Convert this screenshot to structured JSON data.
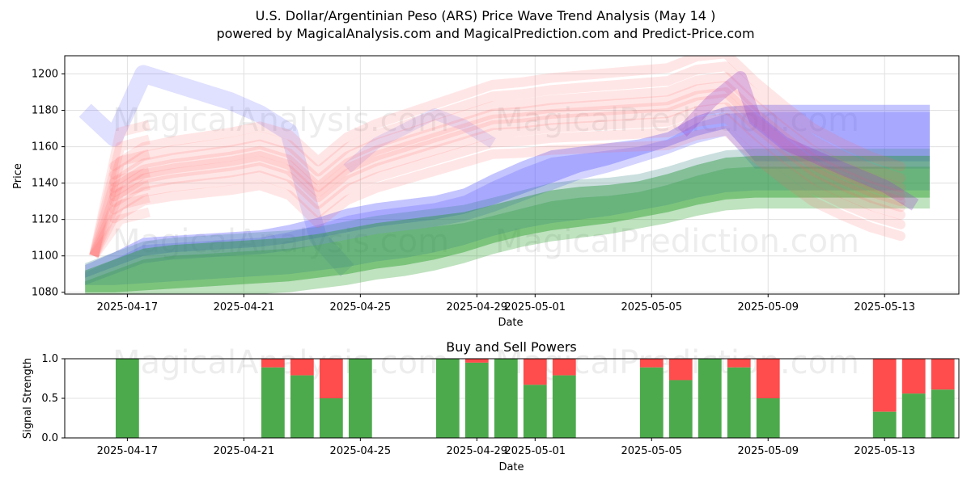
{
  "chart_data": [
    {
      "type": "area",
      "title_line1": "U.S. Dollar/Argentinian Peso (ARS) Price Wave Trend Analysis (May 14 )",
      "title_line2": "powered by MagicalAnalysis.com and MagicalPrediction.com and Predict-Price.com",
      "xlabel": "Date",
      "ylabel": "Price",
      "x_range": [
        -0.7,
        30.0
      ],
      "ylim": [
        1079,
        1210
      ],
      "x_ticks": [
        {
          "pos": 1.45,
          "label": "2025-04-17"
        },
        {
          "pos": 5.45,
          "label": "2025-04-21"
        },
        {
          "pos": 9.45,
          "label": "2025-04-25"
        },
        {
          "pos": 13.45,
          "label": "2025-04-29"
        },
        {
          "pos": 15.45,
          "label": "2025-05-01"
        },
        {
          "pos": 19.45,
          "label": "2025-05-05"
        },
        {
          "pos": 23.45,
          "label": "2025-05-09"
        },
        {
          "pos": 27.45,
          "label": "2025-05-13"
        }
      ],
      "y_ticks": [
        1080,
        1100,
        1120,
        1140,
        1160,
        1180,
        1200
      ],
      "grid": true,
      "watermarks": [
        "MagicalAnalysis.com",
        "MagicalPrediction.com"
      ],
      "colors": {
        "blue": "#5555ff",
        "green": "#2ca02c",
        "teal": "#2f7f7f",
        "red": "#ff6666",
        "purple": "#9944cc"
      },
      "series": [
        {
          "name": "blue band",
          "x": [
            0,
            1,
            2,
            3,
            4,
            5,
            6,
            7,
            8,
            9,
            10,
            11,
            12,
            13,
            14,
            15,
            16,
            17,
            18,
            19,
            20,
            21,
            22,
            23,
            24,
            25,
            26,
            27,
            28,
            29
          ],
          "upper": [
            1095,
            1102,
            1110,
            1111,
            1112,
            1113,
            1114,
            1117,
            1121,
            1126,
            1129,
            1131,
            1133,
            1137,
            1145,
            1152,
            1158,
            1160,
            1162,
            1164,
            1168,
            1177,
            1182,
            1183,
            1183,
            1183,
            1183,
            1183,
            1183,
            1183
          ],
          "lower": [
            1088,
            1094,
            1100,
            1102,
            1103,
            1104,
            1105,
            1107,
            1110,
            1113,
            1116,
            1118,
            1120,
            1123,
            1128,
            1134,
            1140,
            1146,
            1150,
            1155,
            1160,
            1166,
            1170,
            1152,
            1152,
            1152,
            1152,
            1152,
            1152,
            1152
          ]
        },
        {
          "name": "green band",
          "x": [
            0,
            1,
            2,
            3,
            4,
            5,
            6,
            7,
            8,
            9,
            10,
            11,
            12,
            13,
            14,
            15,
            16,
            17,
            18,
            19,
            20,
            21,
            22,
            23,
            24,
            25,
            26,
            27,
            28,
            29
          ],
          "upper": [
            1092,
            1098,
            1104,
            1106,
            1107,
            1108,
            1109,
            1110,
            1112,
            1115,
            1118,
            1120,
            1122,
            1124,
            1128,
            1132,
            1136,
            1138,
            1139,
            1141,
            1145,
            1150,
            1154,
            1155,
            1155,
            1155,
            1155,
            1155,
            1155,
            1155
          ],
          "lower": [
            1080,
            1080,
            1081,
            1082,
            1083,
            1084,
            1085,
            1086,
            1088,
            1090,
            1093,
            1095,
            1098,
            1102,
            1107,
            1111,
            1114,
            1116,
            1118,
            1121,
            1124,
            1128,
            1131,
            1132,
            1132,
            1132,
            1132,
            1132,
            1132,
            1132
          ]
        },
        {
          "name": "red waves",
          "x": [
            1,
            2,
            3,
            4,
            5,
            6,
            7,
            8,
            9,
            10,
            11,
            12,
            13,
            14,
            15,
            16,
            17,
            18,
            19,
            20,
            21,
            22,
            23,
            24,
            25,
            26,
            27,
            28
          ],
          "center": [
            1135,
            1145,
            1148,
            1150,
            1152,
            1155,
            1150,
            1135,
            1148,
            1155,
            1160,
            1165,
            1170,
            1175,
            1176,
            1178,
            1179,
            1180,
            1181,
            1182,
            1188,
            1190,
            1175,
            1162,
            1150,
            1142,
            1135,
            1130
          ],
          "spread": 14
        },
        {
          "name": "signal points",
          "x": [
            0,
            1,
            29
          ],
          "values": [
            1090,
            1102,
            1126
          ]
        }
      ],
      "signal_strength": {
        "title": "Buy and Sell Powers",
        "xlabel": "Date",
        "ylabel": "Signal Strength",
        "y_ticks": [
          "0.0",
          "0.5",
          "1.0"
        ],
        "colors": {
          "buy": "#4caa4c",
          "sell": "#ff4c4c"
        },
        "bars": [
          {
            "day": 1.45,
            "buy": 1.0
          },
          {
            "day": 6.45,
            "buy": 0.89
          },
          {
            "day": 7.45,
            "buy": 0.79
          },
          {
            "day": 8.45,
            "buy": 0.5
          },
          {
            "day": 9.45,
            "buy": 1.0
          },
          {
            "day": 12.45,
            "buy": 1.0
          },
          {
            "day": 13.45,
            "buy": 0.95
          },
          {
            "day": 14.45,
            "buy": 1.0
          },
          {
            "day": 15.45,
            "buy": 0.67
          },
          {
            "day": 16.45,
            "buy": 0.79
          },
          {
            "day": 19.45,
            "buy": 0.89
          },
          {
            "day": 20.45,
            "buy": 0.73
          },
          {
            "day": 21.45,
            "buy": 1.0
          },
          {
            "day": 22.45,
            "buy": 0.89
          },
          {
            "day": 23.45,
            "buy": 0.5
          },
          {
            "day": 27.45,
            "buy": 0.33
          },
          {
            "day": 28.45,
            "buy": 0.56
          },
          {
            "day": 29.45,
            "buy": 0.61
          }
        ]
      }
    }
  ]
}
